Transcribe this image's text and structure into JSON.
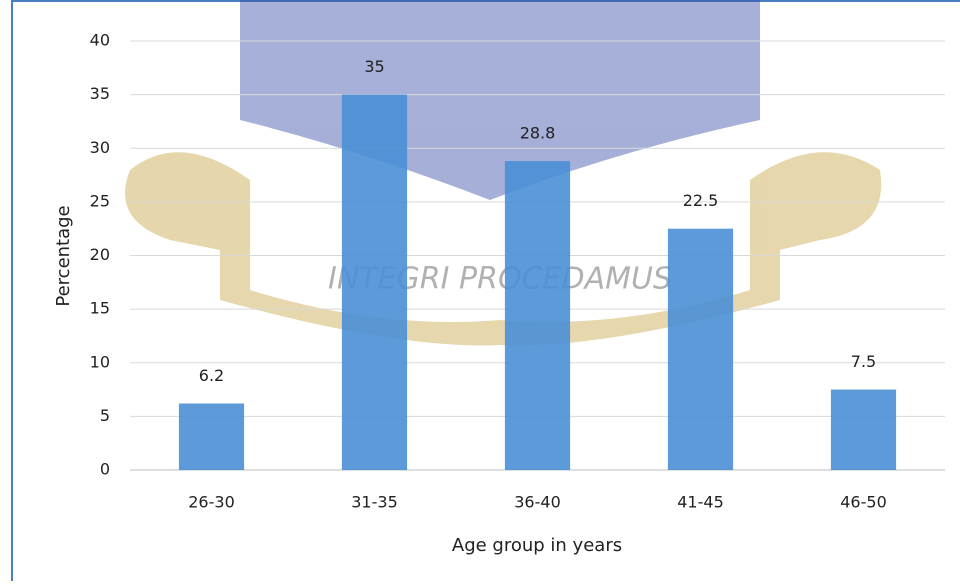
{
  "chart_data": {
    "type": "bar",
    "categories": [
      "26-30",
      "31-35",
      "36-40",
      "41-45",
      "46-50"
    ],
    "values": [
      6.2,
      35,
      28.8,
      22.5,
      7.5
    ],
    "color": "#4a8fd6",
    "ylim": [
      0,
      40
    ],
    "yticks": [
      0,
      5,
      10,
      15,
      20,
      25,
      30,
      35,
      40
    ],
    "grid": true,
    "xlabel": "Age group in years",
    "ylabel": "Percentage",
    "watermark": "INTEGRI PROCEDAMUS"
  }
}
